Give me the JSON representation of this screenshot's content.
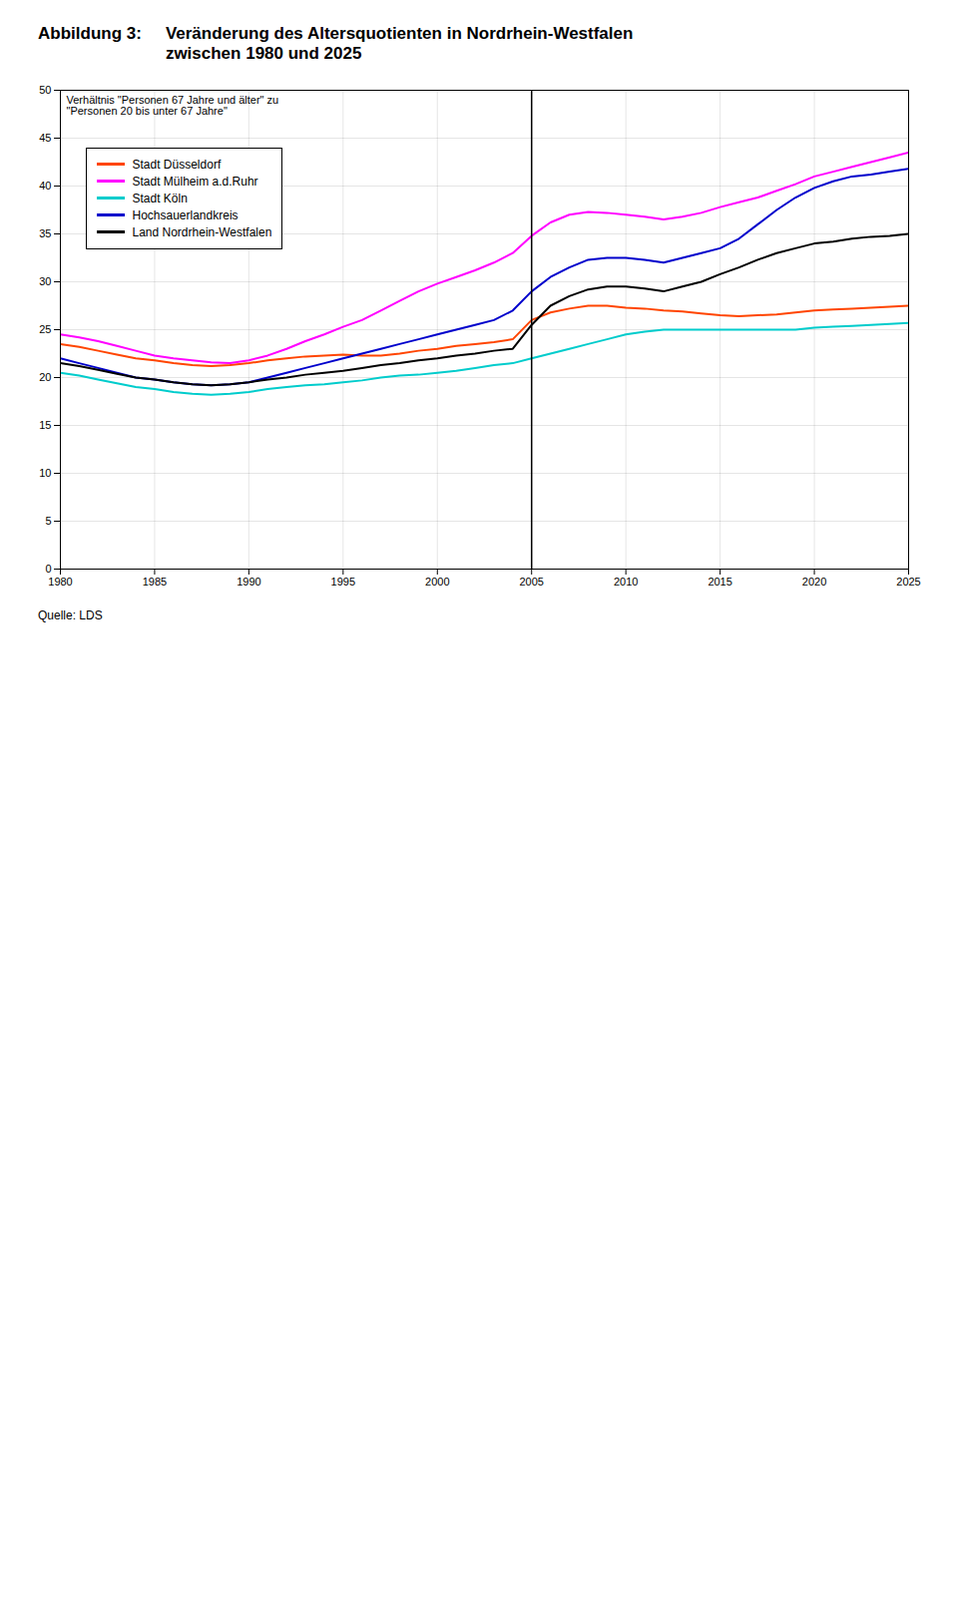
{
  "chart_data": {
    "type": "line",
    "title": "Abbildung 3:",
    "subtitle": "Veränderung des Altersquotienten in Nordrhein-Westfalen\nzwischen 1980 und 2025",
    "ylabel": "Verhältnis \"Personen 67 Jahre und älter\" zu\n\"Personen 20 bis unter 67 Jahre\"",
    "source": "Quelle: LDS",
    "xlim": [
      1980,
      2025
    ],
    "ylim": [
      0,
      50
    ],
    "xticks": [
      1980,
      1985,
      1990,
      1995,
      2000,
      2005,
      2010,
      2015,
      2020,
      2025
    ],
    "yticks": [
      0,
      5,
      10,
      15,
      20,
      25,
      30,
      35,
      40,
      45,
      50
    ],
    "grid": true,
    "legend": "upper left",
    "vline": 2005,
    "x": [
      1980,
      1981,
      1982,
      1983,
      1984,
      1985,
      1986,
      1987,
      1988,
      1989,
      1990,
      1991,
      1992,
      1993,
      1994,
      1995,
      1996,
      1997,
      1998,
      1999,
      2000,
      2001,
      2002,
      2003,
      2004,
      2005,
      2006,
      2007,
      2008,
      2009,
      2010,
      2011,
      2012,
      2013,
      2014,
      2015,
      2016,
      2017,
      2018,
      2019,
      2020,
      2021,
      2022,
      2023,
      2024,
      2025
    ],
    "series": [
      {
        "name": "Stadt Düsseldorf",
        "color": "#ff4500",
        "values": [
          23.5,
          23.2,
          22.8,
          22.4,
          22.0,
          21.8,
          21.5,
          21.3,
          21.2,
          21.3,
          21.5,
          21.8,
          22.0,
          22.2,
          22.3,
          22.4,
          22.3,
          22.3,
          22.5,
          22.8,
          23.0,
          23.3,
          23.5,
          23.7,
          24.0,
          26.0,
          26.8,
          27.2,
          27.5,
          27.5,
          27.3,
          27.2,
          27.0,
          26.9,
          26.7,
          26.5,
          26.4,
          26.5,
          26.6,
          26.8,
          27.0,
          27.1,
          27.2,
          27.3,
          27.4,
          27.5
        ]
      },
      {
        "name": "Stadt Mülheim a.d.Ruhr",
        "color": "#ff00ff",
        "values": [
          24.5,
          24.2,
          23.8,
          23.3,
          22.8,
          22.3,
          22.0,
          21.8,
          21.6,
          21.5,
          21.8,
          22.3,
          23.0,
          23.8,
          24.5,
          25.3,
          26.0,
          27.0,
          28.0,
          29.0,
          29.8,
          30.5,
          31.2,
          32.0,
          33.0,
          34.8,
          36.2,
          37.0,
          37.3,
          37.2,
          37.0,
          36.8,
          36.5,
          36.8,
          37.2,
          37.8,
          38.3,
          38.8,
          39.5,
          40.2,
          41.0,
          41.5,
          42.0,
          42.5,
          43.0,
          43.5
        ]
      },
      {
        "name": "Stadt Köln",
        "color": "#00cccc",
        "values": [
          20.5,
          20.2,
          19.8,
          19.4,
          19.0,
          18.8,
          18.5,
          18.3,
          18.2,
          18.3,
          18.5,
          18.8,
          19.0,
          19.2,
          19.3,
          19.5,
          19.7,
          20.0,
          20.2,
          20.3,
          20.5,
          20.7,
          21.0,
          21.3,
          21.5,
          22.0,
          22.5,
          23.0,
          23.5,
          24.0,
          24.5,
          24.8,
          25.0,
          25.0,
          25.0,
          25.0,
          25.0,
          25.0,
          25.0,
          25.0,
          25.2,
          25.3,
          25.4,
          25.5,
          25.6,
          25.7
        ]
      },
      {
        "name": "Hochsauerlandkreis",
        "color": "#0000cc",
        "values": [
          22.0,
          21.5,
          21.0,
          20.5,
          20.0,
          19.8,
          19.5,
          19.3,
          19.2,
          19.3,
          19.5,
          20.0,
          20.5,
          21.0,
          21.5,
          22.0,
          22.5,
          23.0,
          23.5,
          24.0,
          24.5,
          25.0,
          25.5,
          26.0,
          27.0,
          29.0,
          30.5,
          31.5,
          32.3,
          32.5,
          32.5,
          32.3,
          32.0,
          32.5,
          33.0,
          33.5,
          34.5,
          36.0,
          37.5,
          38.8,
          39.8,
          40.5,
          41.0,
          41.2,
          41.5,
          41.8
        ]
      },
      {
        "name": "Land Nordrhein-Westfalen",
        "color": "#000000",
        "values": [
          21.5,
          21.2,
          20.8,
          20.4,
          20.0,
          19.8,
          19.5,
          19.3,
          19.2,
          19.3,
          19.5,
          19.8,
          20.0,
          20.3,
          20.5,
          20.7,
          21.0,
          21.3,
          21.5,
          21.8,
          22.0,
          22.3,
          22.5,
          22.8,
          23.0,
          25.5,
          27.5,
          28.5,
          29.2,
          29.5,
          29.5,
          29.3,
          29.0,
          29.5,
          30.0,
          30.8,
          31.5,
          32.3,
          33.0,
          33.5,
          34.0,
          34.2,
          34.5,
          34.7,
          34.8,
          35.0
        ]
      }
    ]
  }
}
